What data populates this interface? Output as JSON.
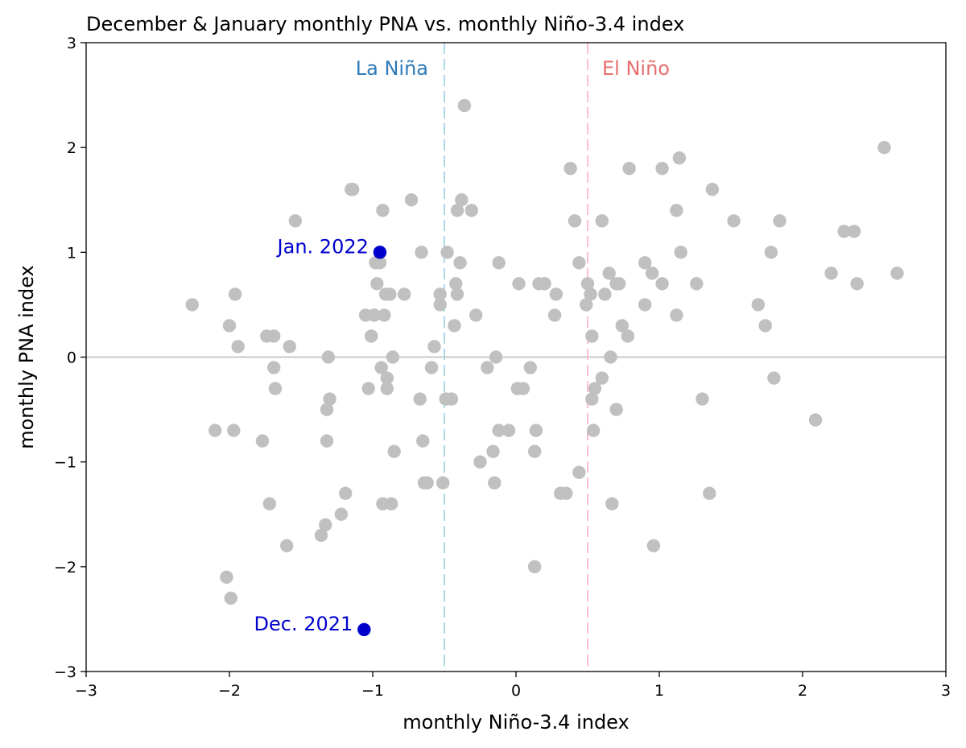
{
  "chart_data": {
    "type": "scatter",
    "title": "December & January monthly PNA vs. monthly Niño-3.4 index",
    "xlabel": "monthly Niño-3.4 index",
    "ylabel": "monthly PNA index",
    "xlim": [
      -3,
      3
    ],
    "ylim": [
      -3,
      3
    ],
    "xticks": [
      -3,
      -2,
      -1,
      0,
      1,
      2,
      3
    ],
    "yticks": [
      -3,
      -2,
      -1,
      0,
      1,
      2,
      3
    ],
    "xtick_labels": [
      "−3",
      "−2",
      "−1",
      "0",
      "1",
      "2",
      "3"
    ],
    "ytick_labels": [
      "−3",
      "−2",
      "−1",
      "0",
      "1",
      "2",
      "3"
    ],
    "grid": false,
    "reference_lines": [
      {
        "orientation": "horizontal",
        "value": 0,
        "color": "#d3d3d3",
        "style": "solid"
      },
      {
        "orientation": "vertical",
        "value": -0.5,
        "color": "#add8e6",
        "style": "dashed",
        "label": "La Niña",
        "label_color": "#2e7ab8"
      },
      {
        "orientation": "vertical",
        "value": 0.5,
        "color": "#ffc0cb",
        "style": "dashed",
        "label": "El Niño",
        "label_color": "#e6706f"
      }
    ],
    "series": [
      {
        "color": "#c0c0c0",
        "points": [
          [
            -2.26,
            0.5
          ],
          [
            -2.1,
            -0.7
          ],
          [
            -2.02,
            -2.1
          ],
          [
            -2.0,
            0.3
          ],
          [
            -1.99,
            -2.3
          ],
          [
            -1.97,
            -0.7
          ],
          [
            -1.96,
            0.6
          ],
          [
            -1.94,
            0.1
          ],
          [
            -1.77,
            -0.8
          ],
          [
            -1.74,
            0.2
          ],
          [
            -1.72,
            -1.4
          ],
          [
            -1.69,
            0.2
          ],
          [
            -1.69,
            -0.1
          ],
          [
            -1.68,
            -0.3
          ],
          [
            -1.6,
            -1.8
          ],
          [
            -1.58,
            0.1
          ],
          [
            -1.54,
            1.3
          ],
          [
            -1.36,
            -1.7
          ],
          [
            -1.33,
            -1.6
          ],
          [
            -1.32,
            -0.5
          ],
          [
            -1.32,
            -0.8
          ],
          [
            -1.31,
            0.0
          ],
          [
            -1.3,
            -0.4
          ],
          [
            -1.22,
            -1.5
          ],
          [
            -1.19,
            -1.3
          ],
          [
            -1.15,
            1.6
          ],
          [
            -1.14,
            1.6
          ],
          [
            -1.05,
            0.4
          ],
          [
            -1.03,
            -0.3
          ],
          [
            -1.01,
            0.2
          ],
          [
            -0.99,
            0.4
          ],
          [
            -0.98,
            0.9
          ],
          [
            -0.97,
            0.7
          ],
          [
            -0.95,
            0.9
          ],
          [
            -0.94,
            -0.1
          ],
          [
            -0.93,
            1.4
          ],
          [
            -0.93,
            -1.4
          ],
          [
            -0.92,
            0.4
          ],
          [
            -0.91,
            0.6
          ],
          [
            -0.9,
            -0.2
          ],
          [
            -0.9,
            -0.3
          ],
          [
            -0.88,
            0.6
          ],
          [
            -0.87,
            -1.4
          ],
          [
            -0.86,
            0.0
          ],
          [
            -0.85,
            -0.9
          ],
          [
            -0.78,
            0.6
          ],
          [
            -0.73,
            1.5
          ],
          [
            -0.67,
            -0.4
          ],
          [
            -0.66,
            1.0
          ],
          [
            -0.65,
            -0.8
          ],
          [
            -0.64,
            -1.2
          ],
          [
            -0.62,
            -1.2
          ],
          [
            -0.59,
            -0.1
          ],
          [
            -0.57,
            0.1
          ],
          [
            -0.53,
            0.6
          ],
          [
            -0.53,
            0.5
          ],
          [
            -0.51,
            -1.2
          ],
          [
            -0.49,
            -0.4
          ],
          [
            -0.48,
            1.0
          ],
          [
            -0.45,
            -0.4
          ],
          [
            -0.43,
            0.3
          ],
          [
            -0.42,
            0.7
          ],
          [
            -0.41,
            1.4
          ],
          [
            -0.41,
            0.6
          ],
          [
            -0.39,
            0.9
          ],
          [
            -0.38,
            1.5
          ],
          [
            -0.36,
            2.4
          ],
          [
            -0.31,
            1.4
          ],
          [
            -0.28,
            0.4
          ],
          [
            -0.25,
            -1.0
          ],
          [
            -0.2,
            -0.1
          ],
          [
            -0.16,
            -0.9
          ],
          [
            -0.15,
            -1.2
          ],
          [
            -0.14,
            0.0
          ],
          [
            -0.12,
            0.9
          ],
          [
            -0.12,
            -0.7
          ],
          [
            -0.05,
            -0.7
          ],
          [
            0.01,
            -0.3
          ],
          [
            0.02,
            0.7
          ],
          [
            0.05,
            -0.3
          ],
          [
            0.1,
            -0.1
          ],
          [
            0.13,
            -0.9
          ],
          [
            0.13,
            -2.0
          ],
          [
            0.14,
            -0.7
          ],
          [
            0.16,
            0.7
          ],
          [
            0.2,
            0.7
          ],
          [
            0.27,
            0.4
          ],
          [
            0.28,
            0.6
          ],
          [
            0.31,
            -1.3
          ],
          [
            0.35,
            -1.3
          ],
          [
            0.38,
            1.8
          ],
          [
            0.41,
            1.3
          ],
          [
            0.44,
            -1.1
          ],
          [
            0.44,
            0.9
          ],
          [
            0.49,
            0.5
          ],
          [
            0.5,
            0.7
          ],
          [
            0.52,
            0.6
          ],
          [
            0.53,
            -0.4
          ],
          [
            0.53,
            0.2
          ],
          [
            0.54,
            -0.7
          ],
          [
            0.55,
            -0.3
          ],
          [
            0.6,
            1.3
          ],
          [
            0.6,
            -0.2
          ],
          [
            0.62,
            0.6
          ],
          [
            0.65,
            0.8
          ],
          [
            0.66,
            0.0
          ],
          [
            0.67,
            -1.4
          ],
          [
            0.7,
            -0.5
          ],
          [
            0.7,
            0.7
          ],
          [
            0.72,
            0.7
          ],
          [
            0.74,
            0.3
          ],
          [
            0.78,
            0.2
          ],
          [
            0.79,
            1.8
          ],
          [
            0.9,
            0.9
          ],
          [
            0.9,
            0.5
          ],
          [
            0.95,
            0.8
          ],
          [
            0.96,
            -1.8
          ],
          [
            1.02,
            0.7
          ],
          [
            1.02,
            1.8
          ],
          [
            1.12,
            1.4
          ],
          [
            1.12,
            0.4
          ],
          [
            1.14,
            1.9
          ],
          [
            1.15,
            1.0
          ],
          [
            1.26,
            0.7
          ],
          [
            1.3,
            -0.4
          ],
          [
            1.35,
            -1.3
          ],
          [
            1.37,
            1.6
          ],
          [
            1.52,
            1.3
          ],
          [
            1.69,
            0.5
          ],
          [
            1.74,
            0.3
          ],
          [
            1.78,
            1.0
          ],
          [
            1.8,
            -0.2
          ],
          [
            1.84,
            1.3
          ],
          [
            2.09,
            -0.6
          ],
          [
            2.2,
            0.8
          ],
          [
            2.29,
            1.2
          ],
          [
            2.36,
            1.2
          ],
          [
            2.38,
            0.7
          ],
          [
            2.57,
            2.0
          ],
          [
            2.66,
            0.8
          ]
        ]
      },
      {
        "color": "#0000cd",
        "points": [
          [
            -0.95,
            1.0
          ],
          [
            -1.06,
            -2.6
          ]
        ]
      }
    ],
    "annotations": [
      {
        "text": "Jan. 2022",
        "x": -0.95,
        "y": 1.0,
        "color": "#0000cd"
      },
      {
        "text": "Dec. 2021",
        "x": -1.06,
        "y": -2.6,
        "color": "#0000cd"
      }
    ]
  }
}
